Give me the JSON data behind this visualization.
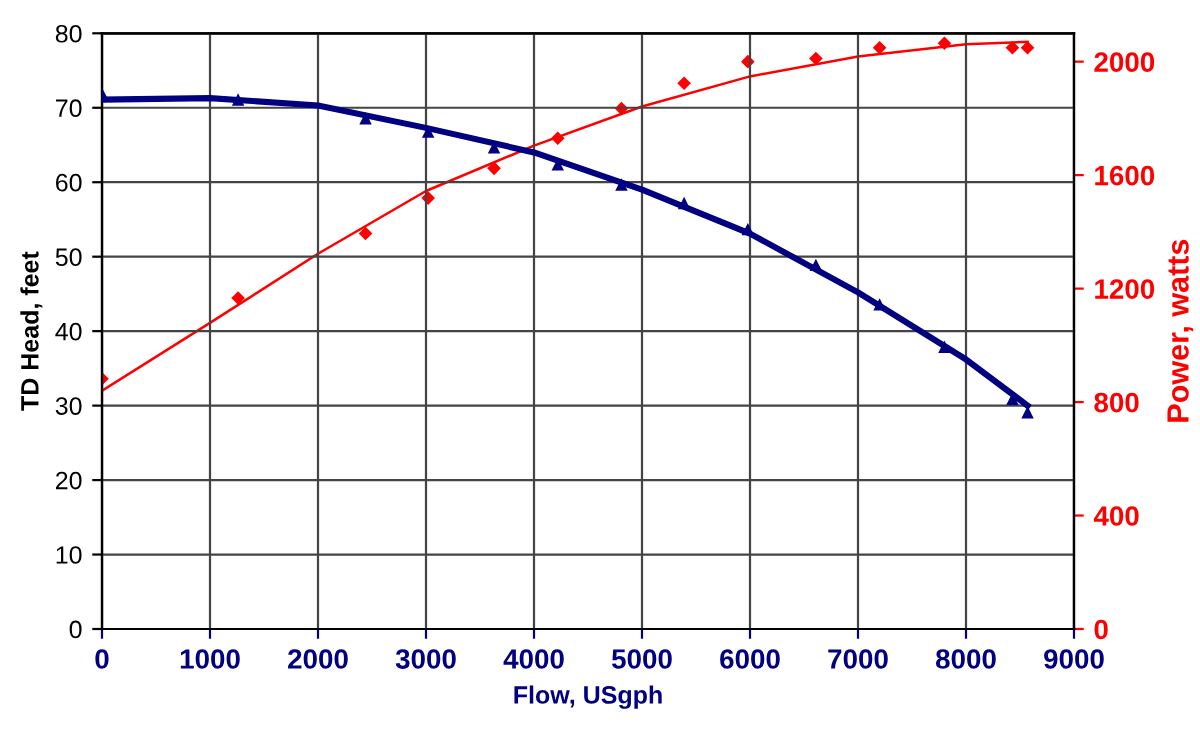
{
  "chart_data": {
    "type": "scatter",
    "xlabel": "Flow, USgph",
    "ylabel": "TD Head, feet",
    "y2label": "Power, watts",
    "xlim": [
      0,
      9000
    ],
    "xticks": [
      0,
      1000,
      2000,
      3000,
      4000,
      5000,
      6000,
      7000,
      8000,
      9000
    ],
    "ylim": [
      0,
      80
    ],
    "yticks": [
      0,
      10,
      20,
      30,
      40,
      50,
      60,
      70,
      80
    ],
    "y2lim": [
      0,
      2100
    ],
    "y2ticks": [
      0,
      400,
      800,
      1200,
      1600,
      2000
    ],
    "grid": true,
    "legend": false,
    "series": [
      {
        "type": "line",
        "color": "#000080",
        "marker": "none",
        "x": [
          0,
          1000,
          2000,
          3000,
          4000,
          5000,
          6000,
          7000,
          8000,
          8570
        ],
        "values": [
          71.1,
          71.3,
          70.3,
          67.3,
          64.0,
          59.0,
          53.1,
          45.2,
          36.2,
          30.0
        ]
      },
      {
        "color": "#000080",
        "marker": "triangle",
        "x": [
          0,
          1260,
          2440,
          3020,
          3630,
          4220,
          4810,
          5390,
          5980,
          6610,
          7200,
          7800,
          8430,
          8570
        ],
        "values": [
          71.9,
          71.1,
          68.6,
          66.8,
          64.7,
          62.4,
          59.7,
          57.2,
          53.7,
          48.9,
          43.6,
          37.9,
          30.9,
          29.1
        ]
      },
      {
        "type": "line",
        "axis": "y2",
        "color": "#ff0000",
        "marker": "none",
        "x": [
          0,
          1000,
          2000,
          3000,
          4000,
          5000,
          6000,
          7000,
          8000,
          8570
        ],
        "values": [
          840,
          1079,
          1323,
          1544,
          1704,
          1842,
          1948,
          2018,
          2061,
          2070
        ]
      },
      {
        "axis": "y2",
        "color": "#ff0000",
        "marker": "diamond",
        "x": [
          0,
          1260,
          2440,
          3020,
          3630,
          4220,
          4810,
          5390,
          5980,
          6610,
          7200,
          7800,
          8430,
          8570
        ],
        "values": [
          882,
          1167,
          1394,
          1519,
          1624,
          1730,
          1835,
          1924,
          2000,
          2011,
          2049,
          2065,
          2049,
          2049
        ]
      }
    ]
  }
}
